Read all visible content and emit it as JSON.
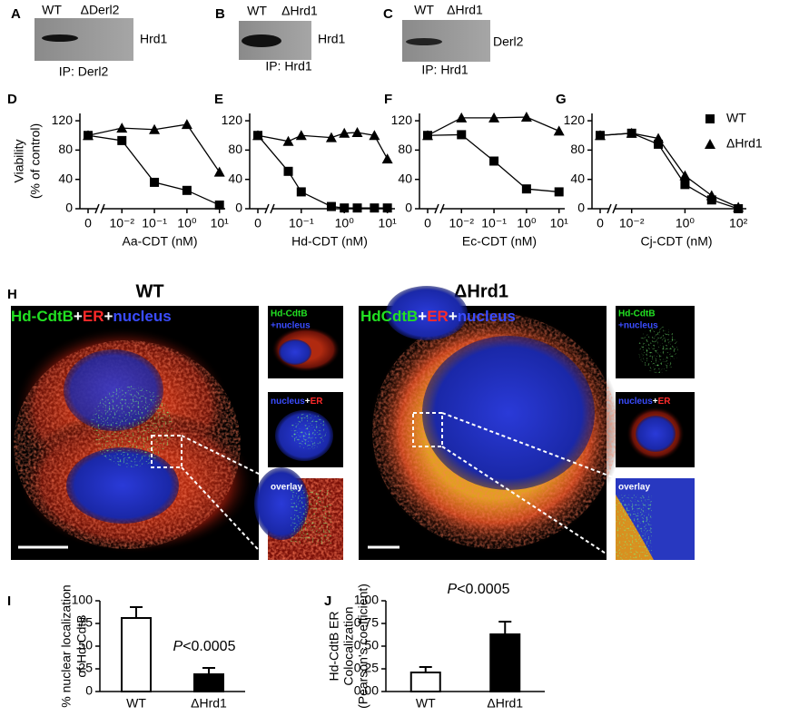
{
  "panel_labels": [
    "A",
    "B",
    "C",
    "D",
    "E",
    "F",
    "G",
    "H",
    "I",
    "J"
  ],
  "blots": [
    {
      "lanes": [
        "WT",
        "ΔDerl2"
      ],
      "band": "Hrd1",
      "ip": "IP: Derl2"
    },
    {
      "lanes": [
        "WT",
        "ΔHrd1"
      ],
      "band": "Hrd1",
      "ip": "IP: Hrd1"
    },
    {
      "lanes": [
        "WT",
        "ΔHrd1"
      ],
      "band": "Derl2",
      "ip": "IP: Hrd1"
    }
  ],
  "micrographs": [
    {
      "title": "WT",
      "stain": [
        "Hd-CdtB",
        "+",
        "ER",
        "+",
        "nucleus"
      ],
      "insets": [
        [
          "Hd-CdtB",
          "+nucleus"
        ],
        [
          "nucleus",
          "+",
          "ER"
        ],
        [
          "overlay"
        ]
      ]
    },
    {
      "title": "ΔHrd1",
      "stain": [
        "HdCdtB",
        "+",
        "ER",
        "+",
        "nucleus"
      ],
      "insets": [
        [
          "Hd-CdtB",
          "+nucleus"
        ],
        [
          "nucleus",
          "+",
          "ER"
        ],
        [
          "overlay"
        ]
      ]
    }
  ],
  "chart_data": [
    {
      "type": "line",
      "xlabel": "Aa-CDT (nM)",
      "ylabel": [
        "Viability",
        "(% of control)"
      ],
      "xlog": true,
      "zero_break": true,
      "x": [
        0,
        0.01,
        0.1,
        1,
        10
      ],
      "xlim": [
        0.004,
        15
      ],
      "xticks": [
        0,
        {
          "value": 0.01,
          "label": "10⁻²"
        },
        {
          "value": 0.1,
          "label": "10⁻¹"
        },
        {
          "value": 1,
          "label": "10⁰"
        },
        {
          "value": 10,
          "label": "10¹"
        }
      ],
      "ylim": [
        0,
        130
      ],
      "yticks": [
        0,
        40,
        80,
        120
      ],
      "series": [
        {
          "marker": "square",
          "color": "#000000",
          "values": [
            100,
            93,
            36,
            25,
            5
          ]
        },
        {
          "marker": "triangle",
          "color": "#000000",
          "values": [
            100,
            110,
            108,
            115,
            50
          ]
        }
      ]
    },
    {
      "type": "line",
      "xlabel": "Hd-CDT (nM)",
      "xlog": true,
      "zero_break": true,
      "x": [
        0,
        0.05,
        0.1,
        0.5,
        1,
        2,
        5,
        10
      ],
      "xlim": [
        0.03,
        15
      ],
      "xticks": [
        0,
        {
          "value": 0.1,
          "label": "10⁻¹"
        },
        {
          "value": 1,
          "label": "10⁰"
        },
        {
          "value": 10,
          "label": "10¹"
        }
      ],
      "ylim": [
        0,
        130
      ],
      "yticks": [
        0,
        40,
        80,
        120
      ],
      "series": [
        {
          "marker": "square",
          "color": "#000000",
          "values": [
            100,
            51,
            23,
            3,
            1,
            1,
            1,
            1
          ]
        },
        {
          "marker": "triangle",
          "color": "#000000",
          "values": [
            100,
            92,
            100,
            97,
            103,
            104,
            100,
            68
          ]
        }
      ]
    },
    {
      "type": "line",
      "xlabel": "Ec-CDT (nM)",
      "xlog": true,
      "zero_break": true,
      "x": [
        0,
        0.01,
        0.1,
        1,
        10
      ],
      "xlim": [
        0.004,
        15
      ],
      "xticks": [
        0,
        {
          "value": 0.01,
          "label": "10⁻²"
        },
        {
          "value": 0.1,
          "label": "10⁻¹"
        },
        {
          "value": 1,
          "label": "10⁰"
        },
        {
          "value": 10,
          "label": "10¹"
        }
      ],
      "ylim": [
        0,
        130
      ],
      "yticks": [
        0,
        40,
        80,
        120
      ],
      "series": [
        {
          "marker": "square",
          "color": "#000000",
          "values": [
            100,
            101,
            65,
            27,
            23
          ]
        },
        {
          "marker": "triangle",
          "color": "#000000",
          "values": [
            100,
            124,
            124,
            125,
            106
          ]
        }
      ]
    },
    {
      "type": "line",
      "xlabel": "Cj-CDT (nM)",
      "xlog": true,
      "zero_break": true,
      "legend": "upper right",
      "x": [
        0,
        0.01,
        0.1,
        1,
        10,
        100
      ],
      "xlim": [
        0.004,
        200
      ],
      "xticks": [
        0,
        {
          "value": 0.01,
          "label": "10⁻²"
        },
        {
          "value": 1,
          "label": "10⁰"
        },
        {
          "value": 100,
          "label": "10²"
        }
      ],
      "ylim": [
        0,
        130
      ],
      "yticks": [
        0,
        40,
        80,
        120
      ],
      "series": [
        {
          "name": "WT",
          "marker": "square",
          "color": "#000000",
          "values": [
            100,
            103,
            88,
            33,
            12,
            0
          ]
        },
        {
          "name": "ΔHrd1",
          "marker": "triangle",
          "color": "#000000",
          "values": [
            100,
            103,
            96,
            45,
            18,
            2
          ]
        }
      ]
    },
    {
      "type": "bar",
      "ylabel": [
        "% nuclear localization",
        "of Hd-CdtB"
      ],
      "categories": [
        "WT",
        "ΔHrd1"
      ],
      "values": [
        81,
        19
      ],
      "errors": [
        12,
        7
      ],
      "colors": [
        "#ffffff",
        "#000000"
      ],
      "ylim": [
        0,
        100
      ],
      "yticks": [
        0,
        25,
        50,
        75,
        100
      ],
      "annotation": {
        "italic": "P",
        "text": "<0.0005"
      }
    },
    {
      "type": "bar",
      "ylabel": [
        "Hd-CdtB ER",
        "Colocalization",
        "(Pearson's coefficient)"
      ],
      "categories": [
        "WT",
        "ΔHrd1"
      ],
      "values": [
        0.21,
        0.63
      ],
      "errors": [
        0.06,
        0.14
      ],
      "colors": [
        "#ffffff",
        "#000000"
      ],
      "ylim": [
        0,
        1
      ],
      "yticks": [
        {
          "value": 0,
          "label": "0.00"
        },
        0.25,
        {
          "value": 0.5,
          "label": "0.50"
        },
        0.75,
        {
          "value": 1,
          "label": "1.00"
        }
      ],
      "annotation": {
        "italic": "P",
        "text": "<0.0005"
      }
    }
  ]
}
